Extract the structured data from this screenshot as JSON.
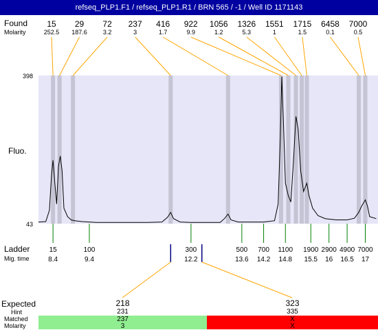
{
  "header": {
    "title": "refseq_PLP1.F1 / refseq_PLP1.R1 / BRN 565 / -1 / Well ID 1171143"
  },
  "labels": {
    "found": "Found",
    "molarity": "Molarity",
    "fluo": "Fluo.",
    "ladder": "Ladder",
    "mig_time": "Mig. time",
    "expected": "Expected",
    "hint": "Hint",
    "matched": "Matched",
    "molarity_row": "Molarity"
  },
  "chart_data": {
    "type": "line",
    "y_ticks": [
      "398",
      "43"
    ],
    "ylim": [
      43,
      398
    ],
    "xlim": [
      8.0,
      17.35
    ],
    "found_peaks": [
      {
        "size": "15",
        "molarity": "252.5",
        "time": 8.4
      },
      {
        "size": "29",
        "molarity": "187.6",
        "time": 8.58
      },
      {
        "size": "72",
        "molarity": "3.2",
        "time": 8.95
      },
      {
        "size": "237",
        "molarity": "3",
        "time": 11.64
      },
      {
        "size": "416",
        "molarity": "1.7",
        "time": 13.22
      },
      {
        "size": "922",
        "molarity": "9.9",
        "time": 14.68
      },
      {
        "size": "1056",
        "molarity": "1.2",
        "time": 14.88
      },
      {
        "size": "1326",
        "molarity": "5.3",
        "time": 15.09
      },
      {
        "size": "1551",
        "molarity": "1",
        "time": 15.25
      },
      {
        "size": "1715",
        "molarity": "1.5",
        "time": 15.39
      },
      {
        "size": "6458",
        "molarity": "0.1",
        "time": 16.82
      },
      {
        "size": "7000",
        "molarity": "0.5",
        "time": 17.0
      }
    ],
    "ladder": [
      {
        "size": "15",
        "time": "8.4",
        "t": 8.4
      },
      {
        "size": "100",
        "time": "9.4",
        "t": 9.4
      },
      {
        "size": "300",
        "time": "12.2",
        "t": 12.2
      },
      {
        "size": "500",
        "time": "13.6",
        "t": 13.6
      },
      {
        "size": "700",
        "time": "14.2",
        "t": 14.2
      },
      {
        "size": "1100",
        "time": "14.8",
        "t": 14.8
      },
      {
        "size": "1900",
        "time": "15.5",
        "t": 15.5
      },
      {
        "size": "2900",
        "time": "16",
        "t": 16.0
      },
      {
        "size": "4900",
        "time": "16.5",
        "t": 16.5
      },
      {
        "size": "7000",
        "time": "17",
        "t": 17.0
      }
    ],
    "trace": [
      [
        8.0,
        47
      ],
      [
        8.2,
        48
      ],
      [
        8.3,
        75
      ],
      [
        8.36,
        160
      ],
      [
        8.4,
        195
      ],
      [
        8.45,
        140
      ],
      [
        8.5,
        90
      ],
      [
        8.55,
        180
      ],
      [
        8.6,
        205
      ],
      [
        8.65,
        170
      ],
      [
        8.7,
        80
      ],
      [
        8.8,
        60
      ],
      [
        8.9,
        52
      ],
      [
        9.0,
        50
      ],
      [
        9.2,
        48
      ],
      [
        9.4,
        47
      ],
      [
        9.6,
        46
      ],
      [
        9.8,
        46
      ],
      [
        10.0,
        46
      ],
      [
        10.5,
        46
      ],
      [
        11.0,
        46
      ],
      [
        11.4,
        47
      ],
      [
        11.55,
        58
      ],
      [
        11.64,
        70
      ],
      [
        11.72,
        55
      ],
      [
        11.9,
        47
      ],
      [
        12.2,
        46
      ],
      [
        12.5,
        46
      ],
      [
        13.0,
        46
      ],
      [
        13.12,
        55
      ],
      [
        13.22,
        66
      ],
      [
        13.3,
        52
      ],
      [
        13.5,
        47
      ],
      [
        13.8,
        47
      ],
      [
        14.2,
        47
      ],
      [
        14.5,
        50
      ],
      [
        14.6,
        90
      ],
      [
        14.66,
        250
      ],
      [
        14.7,
        395
      ],
      [
        14.74,
        300
      ],
      [
        14.8,
        140
      ],
      [
        14.88,
        110
      ],
      [
        14.95,
        95
      ],
      [
        15.02,
        190
      ],
      [
        15.09,
        300
      ],
      [
        15.15,
        270
      ],
      [
        15.22,
        170
      ],
      [
        15.3,
        120
      ],
      [
        15.39,
        140
      ],
      [
        15.45,
        110
      ],
      [
        15.55,
        80
      ],
      [
        15.7,
        62
      ],
      [
        15.9,
        55
      ],
      [
        16.2,
        52
      ],
      [
        16.5,
        52
      ],
      [
        16.7,
        56
      ],
      [
        16.82,
        70
      ],
      [
        16.9,
        85
      ],
      [
        17.0,
        100
      ],
      [
        17.06,
        85
      ],
      [
        17.12,
        60
      ],
      [
        17.3,
        55
      ]
    ],
    "expected": [
      {
        "size": "218",
        "hint": "231",
        "matched": "237",
        "molarity": "3",
        "status": "matched",
        "time": 11.64
      },
      {
        "size": "323",
        "hint": "335",
        "matched": "X",
        "molarity": "X",
        "status": "unmatched",
        "time": 12.5
      }
    ],
    "colors": {
      "plot_bg": "#e6e6f8",
      "band": "#c4c4d4",
      "trace": "#000000",
      "leader": "#ffa500",
      "ladder_tick": "#008000",
      "matched": "#90ee90",
      "unmatched": "#ff0000"
    }
  }
}
